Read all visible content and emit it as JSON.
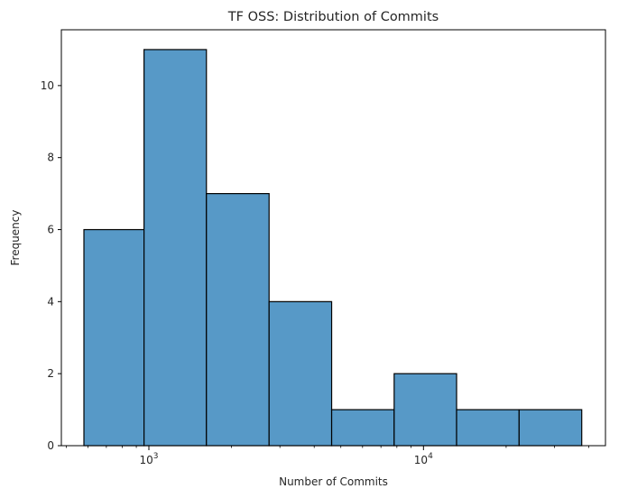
{
  "chart_data": {
    "type": "histogram",
    "title": "TF OSS: Distribution of Commits",
    "xlabel": "Number of Commits",
    "ylabel": "Frequency",
    "x_scale": "log",
    "x_tick_labels": [
      {
        "value": 1000,
        "base": "10",
        "exp": "3"
      },
      {
        "value": 10000,
        "base": "10",
        "exp": "4"
      }
    ],
    "xlim": [
      480,
      46000
    ],
    "ylim": [
      0,
      11.55
    ],
    "y_ticks": [
      0,
      2,
      4,
      6,
      8,
      10
    ],
    "bins": [
      {
        "x0": 580,
        "x1": 960,
        "count": 6
      },
      {
        "x0": 960,
        "x1": 1620,
        "count": 11
      },
      {
        "x0": 1620,
        "x1": 2740,
        "count": 7
      },
      {
        "x0": 2740,
        "x1": 4630,
        "count": 4
      },
      {
        "x0": 4630,
        "x1": 7820,
        "count": 1
      },
      {
        "x0": 7820,
        "x1": 13200,
        "count": 2
      },
      {
        "x0": 13200,
        "x1": 22300,
        "count": 1
      },
      {
        "x0": 22300,
        "x1": 37700,
        "count": 1
      }
    ],
    "bar_color": "#5799c7",
    "edge_color": "#000000",
    "grid": false,
    "legend": "none"
  }
}
